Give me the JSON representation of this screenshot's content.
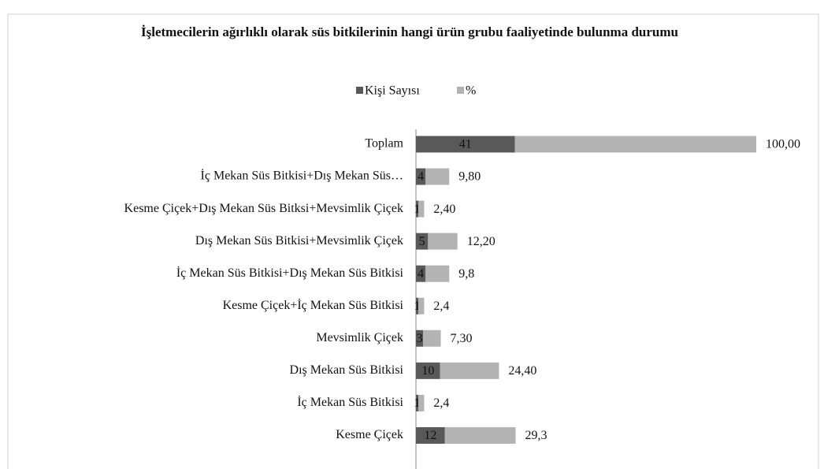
{
  "chart_data": {
    "type": "stacked-barh",
    "title": "İşletmecilerin ağırlıklı olarak süs bitkilerinin hangi ürün grubu faaliyetinde bulunma durumu",
    "categories": [
      "Toplam",
      "İç Mekan Süs Bitkisi+Dış Mekan Süs…",
      "Kesme Çiçek+Dış Mekan Süs Bitksi+Mevsimlik Çiçek",
      "Dış Mekan Süs Bitkisi+Mevsimlik Çiçek",
      "İç Mekan Süs Bitkisi+Dış Mekan Süs Bitkisi",
      "Kesme Çiçek+İç Mekan Süs Bitkisi",
      "Mevsimlik Çiçek",
      "Dış Mekan Süs Bitkisi",
      "İç Mekan Süs Bitkisi",
      "Kesme Çiçek"
    ],
    "series": [
      {
        "name": "Kişi Sayısı",
        "color": "#595959",
        "values": [
          41,
          4,
          1,
          5,
          4,
          1,
          3,
          10,
          1,
          12
        ]
      },
      {
        "name": "%",
        "color": "#b3b3b3",
        "values": [
          100,
          9.8,
          2.4,
          12.2,
          9.8,
          2.4,
          7.3,
          24.4,
          2.4,
          29.3
        ],
        "value_labels": [
          "100,00",
          "9,80",
          "2,40",
          "12,20",
          "9,8",
          "2,4",
          "7,30",
          "24,40",
          "2,4",
          "29,3"
        ]
      }
    ],
    "legend": "top"
  }
}
